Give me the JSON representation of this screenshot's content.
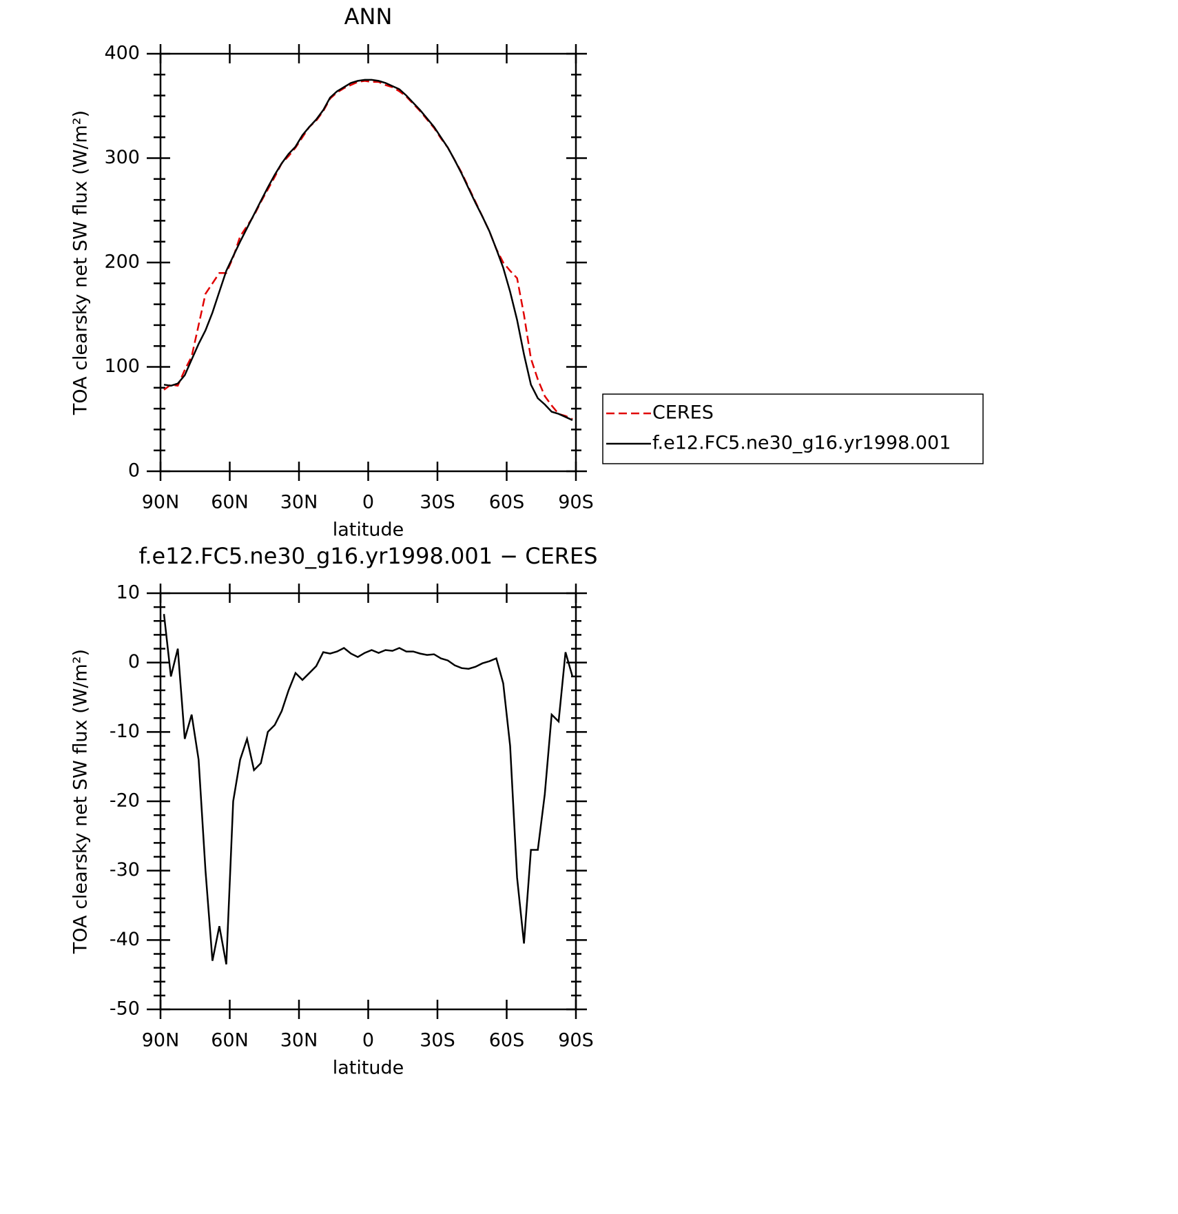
{
  "chart_data": [
    {
      "type": "line",
      "title": "ANN",
      "xlabel": "latitude",
      "ylabel": "TOA clearsky net SW flux (W/m²)",
      "x": [
        88.5,
        85.5,
        82.5,
        79.5,
        76.5,
        73.5,
        70.5,
        67.5,
        64.5,
        61.5,
        58.5,
        55.5,
        52.5,
        49.5,
        46.5,
        43.5,
        40.5,
        37.5,
        34.5,
        31.5,
        28.5,
        25.5,
        22.5,
        19.5,
        16.5,
        13.5,
        10.5,
        7.5,
        4.5,
        1.5,
        -1.5,
        -4.5,
        -7.5,
        -10.5,
        -13.5,
        -16.5,
        -19.5,
        -22.5,
        -25.5,
        -28.5,
        -31.5,
        -34.5,
        -37.5,
        -40.5,
        -43.5,
        -46.5,
        -49.5,
        -52.5,
        -55.5,
        -58.5,
        -61.5,
        -64.5,
        -67.5,
        -70.5,
        -73.5,
        -76.5,
        -79.5,
        -82.5,
        -85.5,
        -88.5
      ],
      "series": [
        {
          "name": "CERES",
          "color": "#e00000",
          "dashed": true,
          "values": [
            78,
            83,
            82,
            97,
            110,
            140,
            170,
            180,
            190,
            190,
            205,
            225,
            235,
            245,
            258,
            270,
            282,
            295,
            302,
            310,
            320,
            330,
            336,
            345,
            357,
            363,
            367,
            370,
            373,
            374,
            373,
            373,
            370,
            368,
            364,
            359,
            352,
            345,
            337,
            329,
            319,
            310,
            298,
            286,
            272,
            258,
            244,
            230,
            213,
            200,
            192,
            185,
            150,
            108,
            88,
            72,
            63,
            55,
            53,
            50
          ]
        },
        {
          "name": "f.e12.FC5.ne30_g16.yr1998.001",
          "color": "#000000",
          "dashed": false,
          "values": [
            83,
            82,
            84,
            92,
            107,
            122,
            135,
            152,
            172,
            192,
            206,
            220,
            233,
            246,
            259,
            272,
            284,
            295,
            304,
            311,
            322,
            330,
            337,
            346,
            358,
            364,
            368,
            372,
            374,
            375,
            375,
            374,
            372,
            369,
            366,
            360,
            353,
            346,
            338,
            330,
            320,
            310,
            298,
            285,
            271,
            257,
            244,
            230,
            213,
            195,
            172,
            145,
            112,
            83,
            70,
            64,
            57,
            55,
            52,
            49
          ]
        }
      ],
      "xlim": [
        90,
        -90
      ],
      "xticks": [
        {
          "value": 90,
          "label": "90N"
        },
        {
          "value": 60,
          "label": "60N"
        },
        {
          "value": 30,
          "label": "30N"
        },
        0,
        {
          "value": -30,
          "label": "30S"
        },
        {
          "value": -60,
          "label": "60S"
        },
        {
          "value": -90,
          "label": "90S"
        }
      ],
      "ylim": [
        0,
        400
      ],
      "yticks": [
        0,
        100,
        200,
        300,
        400
      ],
      "yminorticks": [
        20,
        40,
        60,
        80,
        120,
        140,
        160,
        180,
        220,
        240,
        260,
        280,
        320,
        340,
        360,
        380
      ],
      "legend": "right"
    },
    {
      "type": "line",
      "title": "f.e12.FC5.ne30_g16.yr1998.001 − CERES",
      "xlabel": "latitude",
      "ylabel": "TOA clearsky net SW flux (W/m²)",
      "x": [
        88.5,
        85.5,
        82.5,
        79.5,
        76.5,
        73.5,
        70.5,
        67.5,
        64.5,
        61.5,
        58.5,
        55.5,
        52.5,
        49.5,
        46.5,
        43.5,
        40.5,
        37.5,
        34.5,
        31.5,
        28.5,
        25.5,
        22.5,
        19.5,
        16.5,
        13.5,
        10.5,
        7.5,
        4.5,
        1.5,
        -1.5,
        -4.5,
        -7.5,
        -10.5,
        -13.5,
        -16.5,
        -19.5,
        -22.5,
        -25.5,
        -28.5,
        -31.5,
        -34.5,
        -37.5,
        -40.5,
        -43.5,
        -46.5,
        -49.5,
        -52.5,
        -55.5,
        -58.5,
        -61.5,
        -64.5,
        -67.5,
        -70.5,
        -73.5,
        -76.5,
        -79.5,
        -82.5,
        -85.5,
        -88.5
      ],
      "series": [
        {
          "color": "#000000",
          "dashed": false,
          "values": [
            7,
            -2,
            2,
            -11,
            -7.5,
            -14,
            -30,
            -43,
            -38,
            -43.5,
            -20,
            -14,
            -11,
            -15.5,
            -14.5,
            -10,
            -9,
            -7,
            -4,
            -1.5,
            -2.5,
            -1.5,
            -0.5,
            1.5,
            1.3,
            1.6,
            2.1,
            1.3,
            0.8,
            1.4,
            1.8,
            1.4,
            1.8,
            1.7,
            2.1,
            1.6,
            1.6,
            1.3,
            1.1,
            1.2,
            0.6,
            0.3,
            -0.4,
            -0.8,
            -0.9,
            -0.6,
            -0.1,
            0.2,
            0.6,
            -3,
            -12,
            -31,
            -40.5,
            -27,
            -27,
            -19,
            -7.5,
            -8.5,
            1.5,
            -2
          ]
        }
      ],
      "xlim": [
        90,
        -90
      ],
      "xticks": [
        {
          "value": 90,
          "label": "90N"
        },
        {
          "value": 60,
          "label": "60N"
        },
        {
          "value": 30,
          "label": "30N"
        },
        0,
        {
          "value": -30,
          "label": "30S"
        },
        {
          "value": -60,
          "label": "60S"
        },
        {
          "value": -90,
          "label": "90S"
        }
      ],
      "ylim": [
        -50,
        10
      ],
      "yticks": [
        -50,
        -40,
        -30,
        -20,
        -10,
        0,
        10
      ],
      "yminorticks": [
        -48,
        -46,
        -44,
        -42,
        -38,
        -36,
        -34,
        -32,
        -28,
        -26,
        -24,
        -22,
        -18,
        -16,
        -14,
        -12,
        -8,
        -6,
        -4,
        -2,
        2,
        4,
        6,
        8
      ]
    }
  ]
}
